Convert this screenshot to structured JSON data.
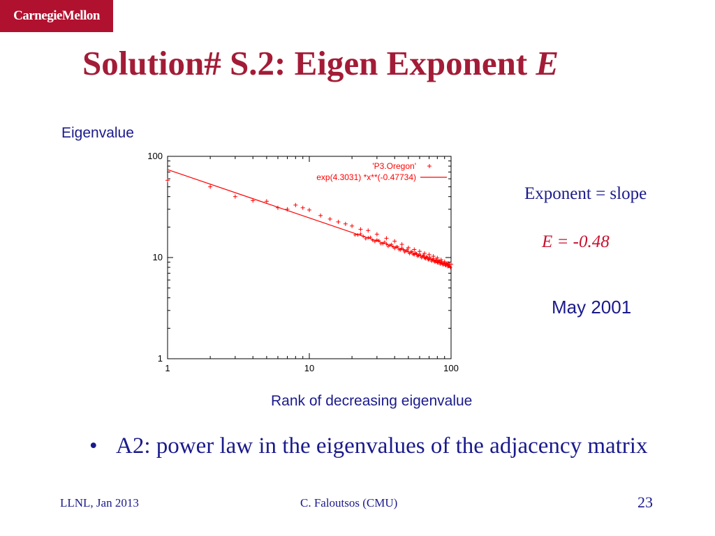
{
  "logo": {
    "text": "CarnegieMellon"
  },
  "slide": {
    "title_main": "Solution# S.2: Eigen Exponent ",
    "title_italic": "E",
    "notes": {
      "exponent_label": "Exponent = slope",
      "exponent_value": "E = -0.48",
      "date": "May 2001"
    },
    "bullet": "A2: power law in the eigenvalues of the adjacency matrix",
    "bullet_symbol": "•"
  },
  "footer": {
    "left": "LLNL, Jan 2013",
    "center": "C. Faloutsos (CMU)",
    "page": "23"
  },
  "colors": {
    "logo_bg": "#b0112f",
    "title": "#a31c37",
    "text_blue": "#1a1a8c",
    "accent_red": "#c8102e",
    "plot_red": "#ff0000"
  },
  "chart_data": {
    "type": "scatter",
    "xlabel": "Rank of decreasing eigenvalue",
    "ylabel": "Eigenvalue",
    "x_scale": "log",
    "y_scale": "log",
    "xlim": [
      1,
      100
    ],
    "ylim": [
      1,
      100
    ],
    "x_ticks": [
      "1",
      "10",
      "100"
    ],
    "y_ticks": [
      "1",
      "10",
      "100"
    ],
    "legend_position": "top-right",
    "series": [
      {
        "name": "'P3.Oregon'",
        "marker": "+",
        "x": [
          1,
          2,
          3,
          4,
          5,
          6,
          7,
          8,
          9,
          10,
          12,
          14,
          16,
          18,
          20,
          23,
          26,
          30,
          35,
          40,
          45,
          50,
          55,
          60,
          65,
          70,
          75,
          80,
          85,
          90,
          95,
          100
        ],
        "y": [
          58,
          50,
          40,
          36.5,
          36,
          31,
          30,
          33,
          31,
          29.5,
          26,
          24,
          22.5,
          21.5,
          20.5,
          19,
          18.5,
          17,
          15.5,
          14.5,
          13.5,
          12.5,
          12,
          11.5,
          11,
          10.7,
          10.3,
          9.9,
          9.5,
          9.1,
          8.8,
          8.6
        ]
      },
      {
        "name": "exp(4.3031) *x**(-0.47734)",
        "type": "line",
        "formula": "y = exp(4.3031) * x^(-0.47734)"
      }
    ]
  }
}
